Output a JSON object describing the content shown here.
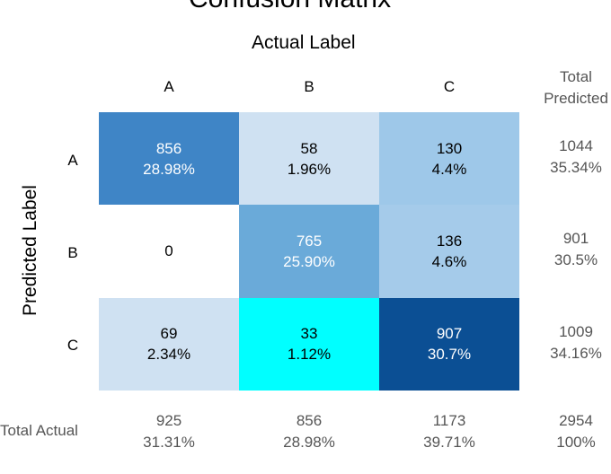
{
  "chart_data": {
    "type": "heatmap",
    "title": "Confusion Matrix",
    "xlabel": "Actual Label",
    "ylabel": "Predicted Label",
    "columns": [
      "A",
      "B",
      "C"
    ],
    "rows": [
      "A",
      "B",
      "C"
    ],
    "cells": [
      [
        {
          "count": "856",
          "pct": "28.98%",
          "color": "#3f85c6",
          "light": true
        },
        {
          "count": "58",
          "pct": "1.96%",
          "color": "#cfe1f2",
          "light": false
        },
        {
          "count": "130",
          "pct": "4.4%",
          "color": "#9ec8e9",
          "light": false
        }
      ],
      [
        {
          "count": "0",
          "pct": "",
          "color": "#ffffff",
          "light": false
        },
        {
          "count": "765",
          "pct": "25.90%",
          "color": "#6aaad9",
          "light": true
        },
        {
          "count": "136",
          "pct": "4.6%",
          "color": "#a5cbea",
          "light": false
        }
      ],
      [
        {
          "count": "69",
          "pct": "2.34%",
          "color": "#cfe1f2",
          "light": false
        },
        {
          "count": "33",
          "pct": "1.12%",
          "color": "#00ffff",
          "light": false
        },
        {
          "count": "907",
          "pct": "30.7%",
          "color": "#0b4f94",
          "light": true
        }
      ]
    ],
    "total_predicted_header": [
      "Total",
      "Predicted"
    ],
    "total_predicted": [
      {
        "count": "1044",
        "pct": "35.34%"
      },
      {
        "count": "901",
        "pct": "30.5%"
      },
      {
        "count": "1009",
        "pct": "34.16%"
      }
    ],
    "total_actual_label": "Total Actual",
    "total_actual": [
      {
        "count": "925",
        "pct": "31.31%"
      },
      {
        "count": "856",
        "pct": "28.98%"
      },
      {
        "count": "1173",
        "pct": "39.71%"
      }
    ],
    "grand_total": {
      "count": "2954",
      "pct": "100%"
    }
  }
}
